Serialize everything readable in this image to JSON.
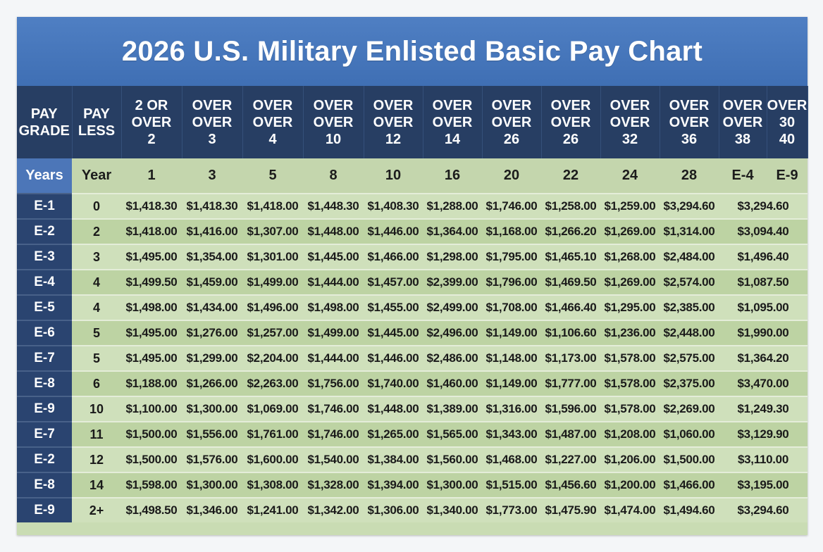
{
  "title": "2026 U.S. Military Enlisted Basic Pay Chart",
  "colors": {
    "title_bar": "#4a7cc0",
    "header_dark": "#273e63",
    "grade_cell": "#2a4470",
    "years_label": "#4c76b8",
    "row_light": "#cfe0bb",
    "row_dark": "#bdd3a3"
  },
  "header": {
    "pay_grade": [
      "PAY",
      "GRADE"
    ],
    "pay_less": [
      "PAY",
      "LESS"
    ],
    "columns": [
      [
        "2 OR",
        "OVER",
        "2"
      ],
      [
        "OVER",
        "OVER",
        "3"
      ],
      [
        "OVER",
        "OVER",
        "4"
      ],
      [
        "OVER",
        "OVER",
        "10"
      ],
      [
        "OVER",
        "OVER",
        "12"
      ],
      [
        "OVER",
        "OVER",
        "14"
      ],
      [
        "OVER",
        "OVER",
        "26"
      ],
      [
        "OVER",
        "OVER",
        "26"
      ],
      [
        "OVER",
        "OVER",
        "32"
      ],
      [
        "OVER",
        "OVER",
        "36"
      ],
      [
        "OVER",
        "OVER",
        "38"
      ],
      [
        "OVER",
        "30",
        "40"
      ]
    ]
  },
  "years_row": {
    "label": "Years",
    "year": "Year",
    "values": [
      "1",
      "3",
      "5",
      "8",
      "10",
      "16",
      "20",
      "22",
      "24",
      "28",
      "E-4",
      "E-9"
    ]
  },
  "rows": [
    {
      "grade": "E-1",
      "year": "0",
      "pay": [
        "$1,418.30",
        "$1,418.30",
        "$1,418.00",
        "$1,448.30",
        "$1,408.30",
        "$1,288.00",
        "$1,746.00",
        "$1,258.00",
        "$1,259.00",
        "$3,294.60"
      ],
      "last": "$3,294.60"
    },
    {
      "grade": "E-2",
      "year": "2",
      "pay": [
        "$1,418.00",
        "$1,416.00",
        "$1,307.00",
        "$1,448.00",
        "$1,446.00",
        "$1,364.00",
        "$1,168.00",
        "$1,266.20",
        "$1,269.00",
        "$1,314.00"
      ],
      "last": "$3,094.40"
    },
    {
      "grade": "E-3",
      "year": "3",
      "pay": [
        "$1,495.00",
        "$1,354.00",
        "$1,301.00",
        "$1,445.00",
        "$1,466.00",
        "$1,298.00",
        "$1,795.00",
        "$1,465.10",
        "$1,268.00",
        "$2,484.00"
      ],
      "last": "$1,496.40"
    },
    {
      "grade": "E-4",
      "year": "4",
      "pay": [
        "$1,499.50",
        "$1,459.00",
        "$1,499.00",
        "$1,444.00",
        "$1,457.00",
        "$2,399.00",
        "$1,796.00",
        "$1,469.50",
        "$1,269.00",
        "$2,574.00"
      ],
      "last": "$1,087.50"
    },
    {
      "grade": "E-5",
      "year": "4",
      "pay": [
        "$1,498.00",
        "$1,434.00",
        "$1,496.00",
        "$1,498.00",
        "$1,455.00",
        "$2,499.00",
        "$1,708.00",
        "$1,466.40",
        "$1,295.00",
        "$2,385.00"
      ],
      "last": "$1,095.00"
    },
    {
      "grade": "E-6",
      "year": "5",
      "pay": [
        "$1,495.00",
        "$1,276.00",
        "$1,257.00",
        "$1,499.00",
        "$1,445.00",
        "$2,496.00",
        "$1,149.00",
        "$1,106.60",
        "$1,236.00",
        "$2,448.00"
      ],
      "last": "$1,990.00"
    },
    {
      "grade": "E-7",
      "year": "5",
      "pay": [
        "$1,495.00",
        "$1,299.00",
        "$2,204.00",
        "$1,444.00",
        "$1,446.00",
        "$2,486.00",
        "$1,148.00",
        "$1,173.00",
        "$1,578.00",
        "$2,575.00"
      ],
      "last": "$1,364.20"
    },
    {
      "grade": "E-8",
      "year": "6",
      "pay": [
        "$1,188.00",
        "$1,266.00",
        "$2,263.00",
        "$1,756.00",
        "$1,740.00",
        "$1,460.00",
        "$1,149.00",
        "$1,777.00",
        "$1,578.00",
        "$2,375.00"
      ],
      "last": "$3,470.00"
    },
    {
      "grade": "E-9",
      "year": "10",
      "pay": [
        "$1,100.00",
        "$1,300.00",
        "$1,069.00",
        "$1,746.00",
        "$1,448.00",
        "$1,389.00",
        "$1,316.00",
        "$1,596.00",
        "$1,578.00",
        "$2,269.00"
      ],
      "last": "$1,249.30"
    },
    {
      "grade": "E-7",
      "year": "11",
      "pay": [
        "$1,500.00",
        "$1,556.00",
        "$1,761.00",
        "$1,746.00",
        "$1,265.00",
        "$1,565.00",
        "$1,343.00",
        "$1,487.00",
        "$1,208.00",
        "$1,060.00"
      ],
      "last": "$3,129.90"
    },
    {
      "grade": "E-2",
      "year": "12",
      "pay": [
        "$1,500.00",
        "$1,576.00",
        "$1,600.00",
        "$1,540.00",
        "$1,384.00",
        "$1,560.00",
        "$1,468.00",
        "$1,227.00",
        "$1,206.00",
        "$1,500.00"
      ],
      "last": "$3,110.00"
    },
    {
      "grade": "E-8",
      "year": "14",
      "pay": [
        "$1,598.00",
        "$1,300.00",
        "$1,308.00",
        "$1,328.00",
        "$1,394.00",
        "$1,300.00",
        "$1,515.00",
        "$1,456.60",
        "$1,200.00",
        "$1,466.00"
      ],
      "last": "$3,195.00"
    },
    {
      "grade": "E-9",
      "year": "2+",
      "pay": [
        "$1,498.50",
        "$1,346.00",
        "$1,241.00",
        "$1,342.00",
        "$1,306.00",
        "$1,340.00",
        "$1,773.00",
        "$1,475.90",
        "$1,474.00",
        "$1,494.60"
      ],
      "last": "$3,294.60"
    }
  ]
}
